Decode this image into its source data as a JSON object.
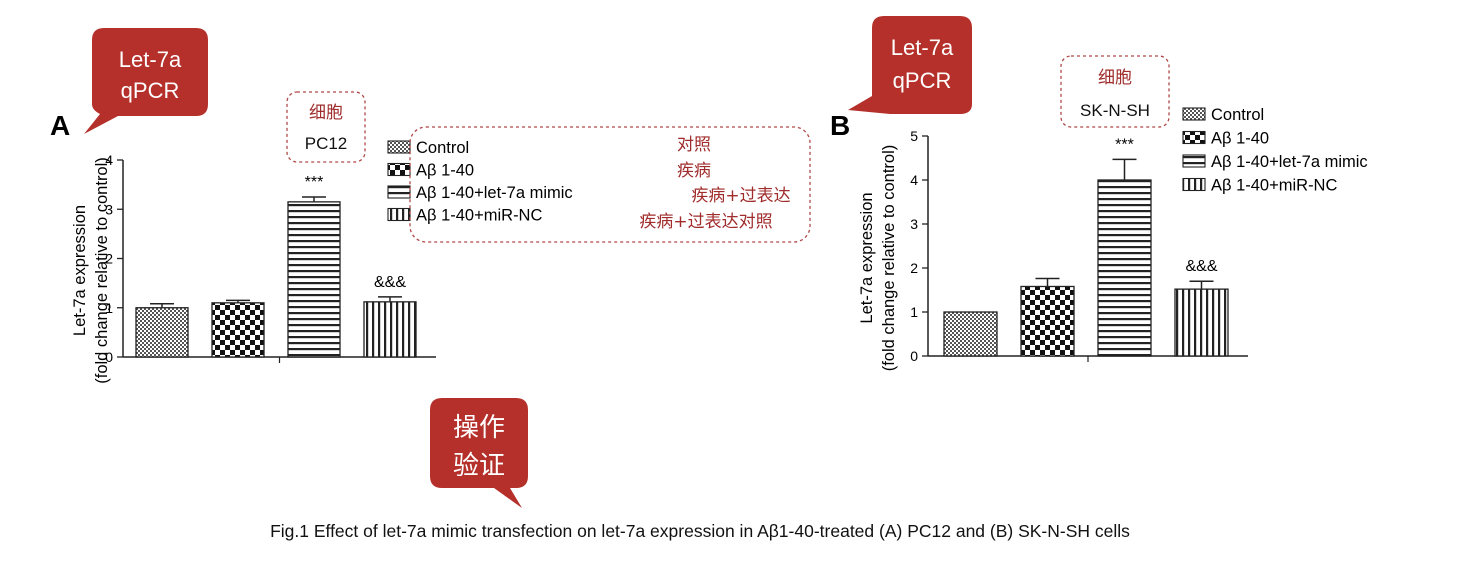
{
  "figure_caption": "Fig.1 Effect of let-7a mimic transfection on let-7a expression in Aβ1-40-treated (A) PC12 and (B) SK-N-SH cells",
  "annotations": {
    "callout_a": [
      "Let-7a",
      "qPCR"
    ],
    "callout_b": [
      "Let-7a",
      "qPCR"
    ],
    "callout_op": [
      "操作",
      "验证"
    ],
    "cell_box_a": {
      "title": "细胞",
      "name": "PC12"
    },
    "cell_box_b": {
      "title": "细胞",
      "name": "SK-N-SH"
    },
    "group_translations": [
      "对照",
      "疾病",
      "疾病+过表达",
      "疾病+过表达对照"
    ]
  },
  "colors": {
    "callout": "#b5302a",
    "annotation_text": "#a02c2c",
    "dashed_border": "#b04848"
  },
  "chart_data": [
    {
      "type": "bar",
      "panel_label": "A",
      "categories": [
        "Control",
        "Aβ 1-40",
        "Aβ 1-40+let-7a mimic",
        "Aβ 1-40+miR-NC"
      ],
      "values": [
        1.0,
        1.1,
        3.15,
        1.12
      ],
      "errors": [
        0.08,
        0.05,
        0.1,
        0.1
      ],
      "fill_patterns": [
        "fine-check",
        "check",
        "horizontal-stripes",
        "vertical-stripes"
      ],
      "significance": [
        "",
        "",
        "***",
        "&&&"
      ],
      "ylabel": [
        "Let-7a expression",
        "(fold change relative to control)"
      ],
      "ylim": [
        0,
        4
      ],
      "yticks": [
        0,
        1,
        2,
        3,
        4
      ],
      "legend": [
        "Control",
        "Aβ 1-40",
        "Aβ 1-40+let-7a mimic",
        "Aβ 1-40+miR-NC"
      ],
      "legend_position": "right"
    },
    {
      "type": "bar",
      "panel_label": "B",
      "categories": [
        "Control",
        "Aβ 1-40",
        "Aβ 1-40+let-7a mimic",
        "Aβ 1-40+miR-NC"
      ],
      "values": [
        1.0,
        1.58,
        4.0,
        1.52
      ],
      "errors": [
        0.0,
        0.18,
        0.47,
        0.18
      ],
      "fill_patterns": [
        "fine-check",
        "check",
        "horizontal-stripes",
        "vertical-stripes"
      ],
      "significance": [
        "",
        "",
        "***",
        "&&&"
      ],
      "ylabel": [
        "Let-7a expression",
        "(fold change relative to control)"
      ],
      "ylim": [
        0,
        5
      ],
      "yticks": [
        0,
        1,
        2,
        3,
        4,
        5
      ],
      "legend": [
        "Control",
        "Aβ 1-40",
        "Aβ 1-40+let-7a mimic",
        "Aβ 1-40+miR-NC"
      ],
      "legend_position": "top-right"
    }
  ]
}
